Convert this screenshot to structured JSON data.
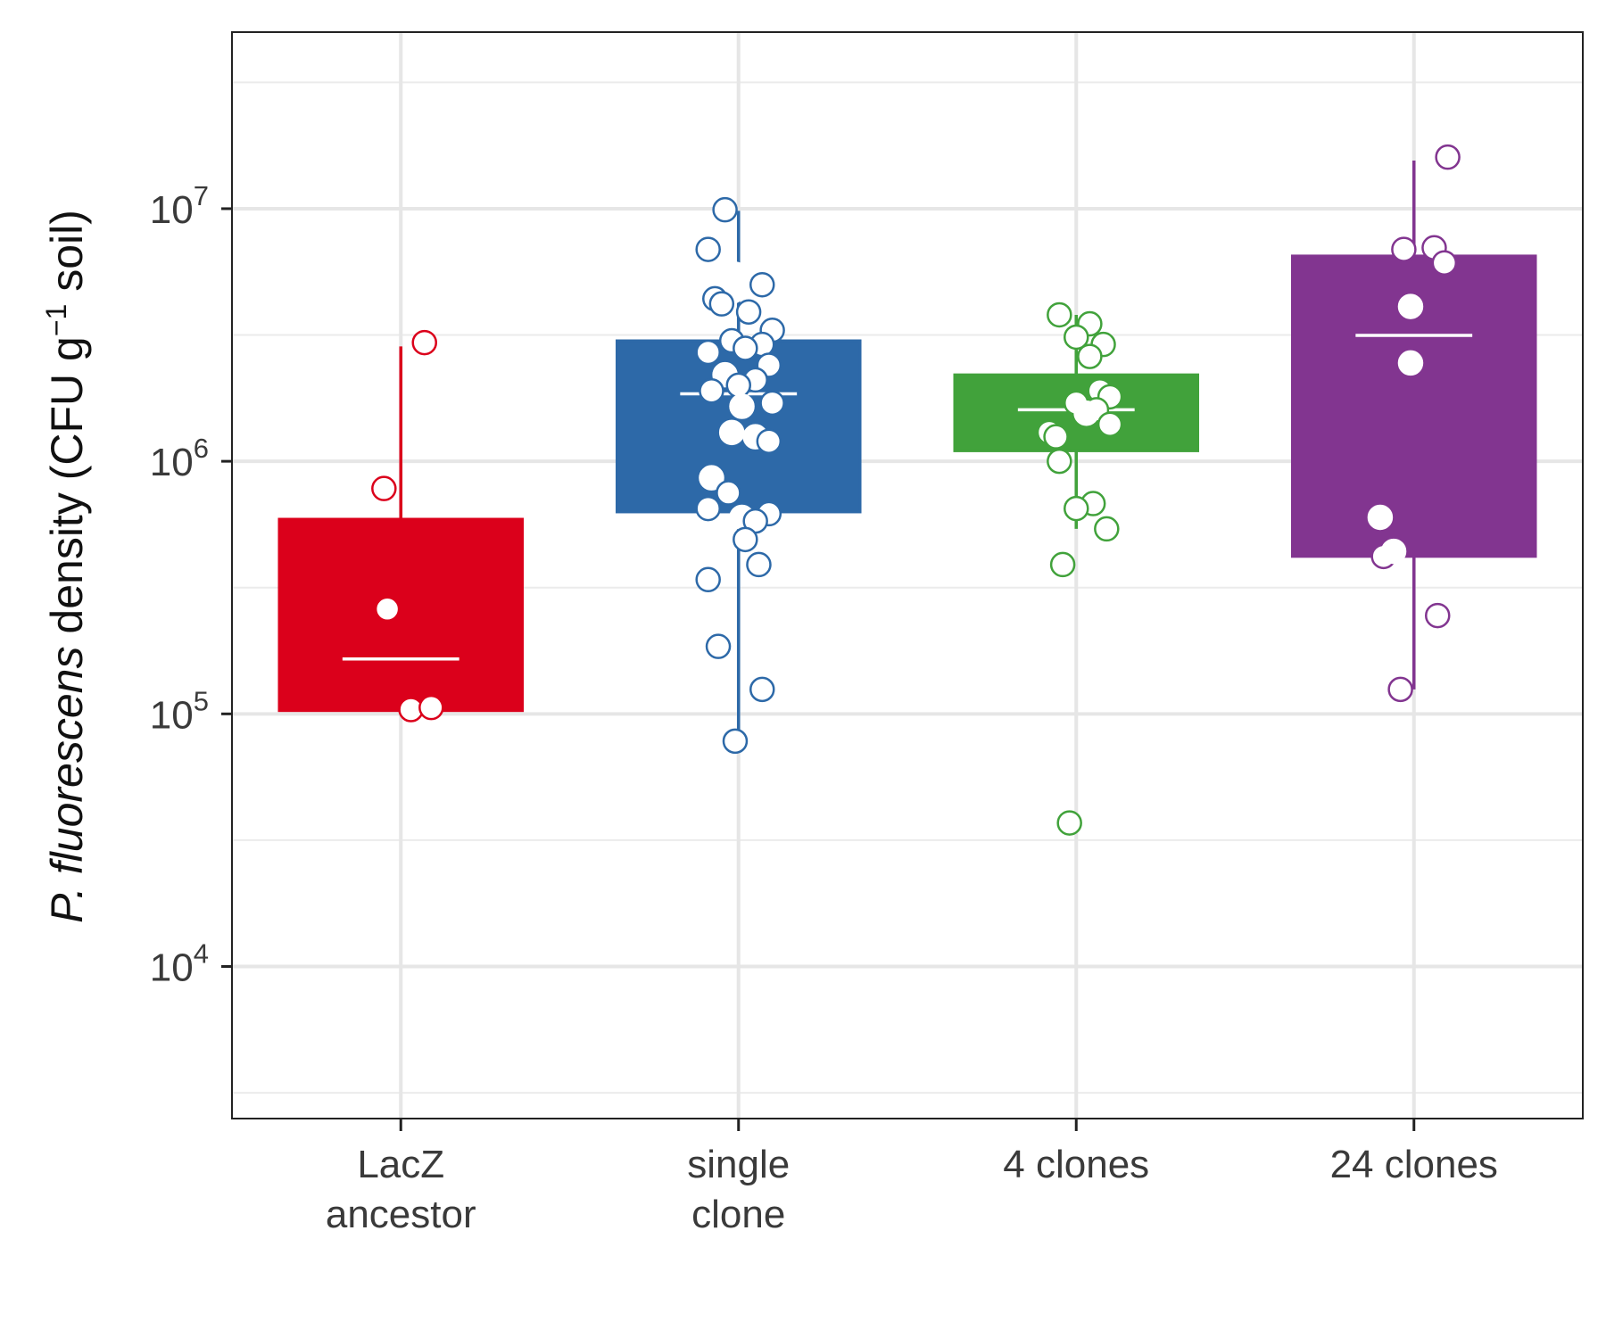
{
  "chart_data": {
    "type": "box",
    "y_scale": "log10",
    "ylim": [
      2500,
      50000000
    ],
    "grid": true,
    "legend": "none",
    "ylabel": {
      "italic_part": "P. fluorescens",
      "main": "density",
      "unit_open": "(CFU g",
      "unit_sup": "−1",
      "unit_close": " soil)"
    },
    "y_ticks": [
      {
        "value": 10000,
        "base": "10",
        "exp": "4"
      },
      {
        "value": 100000,
        "base": "10",
        "exp": "5"
      },
      {
        "value": 1000000,
        "base": "10",
        "exp": "6"
      },
      {
        "value": 10000000,
        "base": "10",
        "exp": "7"
      }
    ],
    "categories": [
      {
        "lines": [
          "LacZ",
          "ancestor"
        ]
      },
      {
        "lines": [
          "single",
          "clone"
        ]
      },
      {
        "lines": [
          "4 clones"
        ]
      },
      {
        "lines": [
          "24 clones"
        ]
      }
    ],
    "series": [
      {
        "color": "#db001b",
        "box": {
          "q1": 103000,
          "median": 165000,
          "q3": 590000,
          "whisker_low": 103000,
          "whisker_high": 2850000
        },
        "points": [
          2950000,
          780000,
          260000,
          104000,
          106000
        ],
        "jitter": [
          0.07,
          -0.05,
          -0.04,
          0.03,
          0.09
        ]
      },
      {
        "color": "#2d69a8",
        "box": {
          "q1": 630000,
          "median": 1850000,
          "q3": 3000000,
          "whisker_low": 78000,
          "whisker_high": 9800000
        },
        "points": [
          9900000,
          6900000,
          5500000,
          5000000,
          4700000,
          4400000,
          4200000,
          3900000,
          3300000,
          3000000,
          2900000,
          2800000,
          2700000,
          2400000,
          2200000,
          2100000,
          2000000,
          1900000,
          1700000,
          1650000,
          1300000,
          1250000,
          1200000,
          860000,
          750000,
          650000,
          620000,
          600000,
          580000,
          490000,
          390000,
          340000,
          185000,
          125000,
          78000
        ],
        "jitter": [
          -0.04,
          -0.09,
          -0.01,
          0.07,
          -0.02,
          -0.07,
          -0.05,
          0.03,
          0.1,
          -0.02,
          0.07,
          0.02,
          -0.09,
          0.09,
          -0.04,
          0.05,
          0.0,
          -0.08,
          0.1,
          0.01,
          -0.02,
          0.05,
          0.09,
          -0.08,
          -0.03,
          -0.09,
          0.09,
          0.01,
          0.05,
          0.02,
          0.06,
          -0.09,
          -0.06,
          0.07,
          -0.01
        ],
        "hollow": [
          true,
          true,
          false,
          true,
          false,
          true,
          true,
          true,
          true,
          true,
          true,
          true,
          true,
          true,
          false,
          true,
          true,
          true,
          true,
          false,
          false,
          false,
          true,
          false,
          true,
          true,
          true,
          false,
          true,
          true,
          true,
          true,
          true,
          true,
          true
        ]
      },
      {
        "color": "#41a23b",
        "box": {
          "q1": 1100000,
          "median": 1600000,
          "q3": 2200000,
          "whisker_low": 540000,
          "whisker_high": 3800000
        },
        "points": [
          3800000,
          3500000,
          3100000,
          2900000,
          2600000,
          1900000,
          1800000,
          1700000,
          1600000,
          1550000,
          1400000,
          1300000,
          1250000,
          1000000,
          680000,
          650000,
          540000,
          390000,
          37000
        ],
        "jitter": [
          -0.05,
          0.04,
          0.0,
          0.08,
          0.04,
          0.07,
          0.1,
          0.0,
          0.06,
          0.03,
          0.1,
          -0.08,
          -0.06,
          -0.05,
          0.05,
          0.0,
          0.09,
          -0.04,
          -0.02
        ],
        "hollow": [
          true,
          true,
          true,
          true,
          true,
          true,
          true,
          true,
          true,
          false,
          true,
          true,
          true,
          true,
          true,
          true,
          true,
          true,
          true
        ]
      },
      {
        "color": "#823590",
        "box": {
          "q1": 420000,
          "median": 3150000,
          "q3": 6500000,
          "whisker_low": 125000,
          "whisker_high": 15500000
        },
        "points": [
          16000000,
          7000000,
          6900000,
          6100000,
          4100000,
          2450000,
          600000,
          420000,
          440000,
          245000,
          125000
        ],
        "jitter": [
          0.1,
          0.06,
          -0.03,
          0.09,
          -0.01,
          -0.01,
          -0.1,
          -0.09,
          -0.06,
          0.07,
          -0.04
        ],
        "hollow": [
          true,
          true,
          true,
          true,
          false,
          false,
          false,
          true,
          false,
          true,
          true
        ]
      }
    ]
  }
}
